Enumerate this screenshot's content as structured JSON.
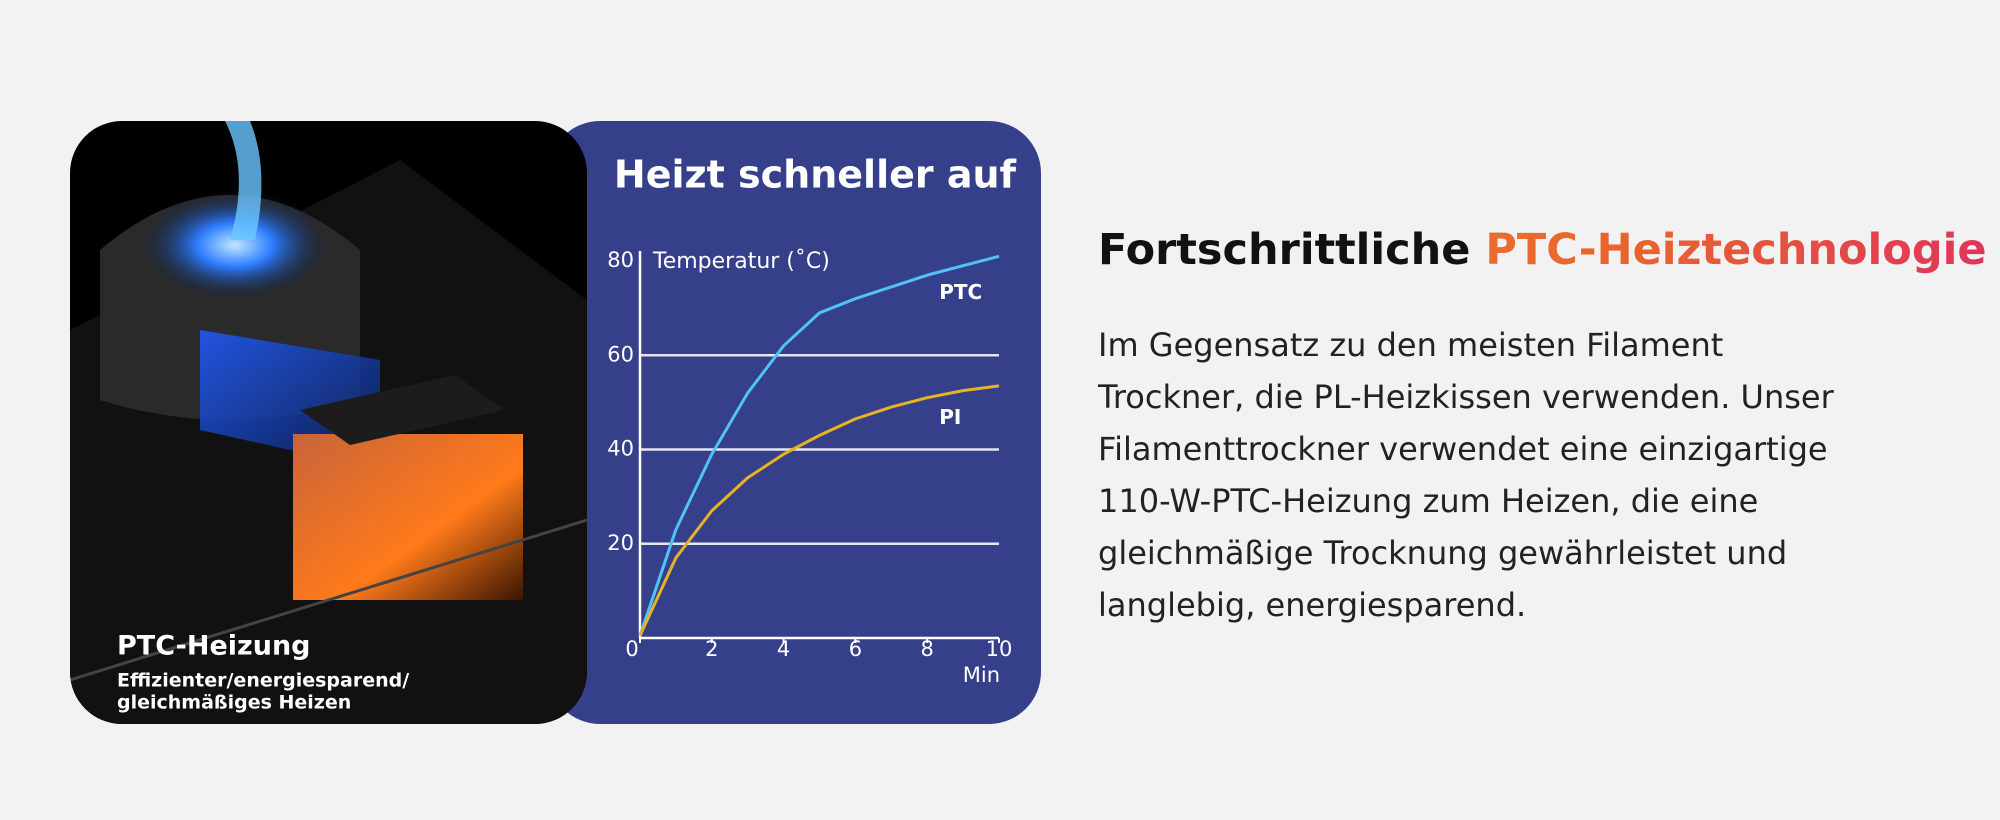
{
  "chart_data": {
    "type": "line",
    "title": "Heizt schneller auf",
    "ylabel": "Temperatur (˚C)",
    "xlabel": "Min",
    "x": [
      0,
      1,
      2,
      3,
      4,
      5,
      6,
      7,
      8,
      9,
      10
    ],
    "series": [
      {
        "name": "PTC",
        "color": "#4fc3f7",
        "values": [
          0.5,
          23,
          39,
          52,
          62,
          69,
          72,
          74.5,
          77,
          79,
          81
        ]
      },
      {
        "name": "PI",
        "color": "#e6b422",
        "values": [
          0.5,
          17,
          27,
          34,
          39,
          43,
          46.5,
          49,
          51,
          52.5,
          53.5
        ]
      }
    ],
    "xlim": [
      0,
      10
    ],
    "xticks": [
      0,
      2,
      4,
      6,
      8,
      10
    ],
    "ylim": [
      0,
      80
    ],
    "yticks": [
      20,
      40,
      60,
      80
    ],
    "grid": true
  },
  "image_card": {
    "title": "PTC-Heizung",
    "subtitle_lines": [
      "Effizienter/energiesparend/",
      "gleichmäßiges Heizen"
    ]
  },
  "feature": {
    "heading": "Fortschrittliche ",
    "heading_highlight": "PTC-Heiztechnologie",
    "body_lines": [
      "Im Gegensatz zu den meisten Filament",
      "Trockner, die PL-Heizkissen verwenden. Unser",
      "Filamenttrockner verwendet eine einzigartige",
      "110-W-PTC-Heizung zum Heizen, die eine",
      "gleichmäßige Trocknung gewährleistet und",
      "langlebig, energiesparend."
    ]
  }
}
